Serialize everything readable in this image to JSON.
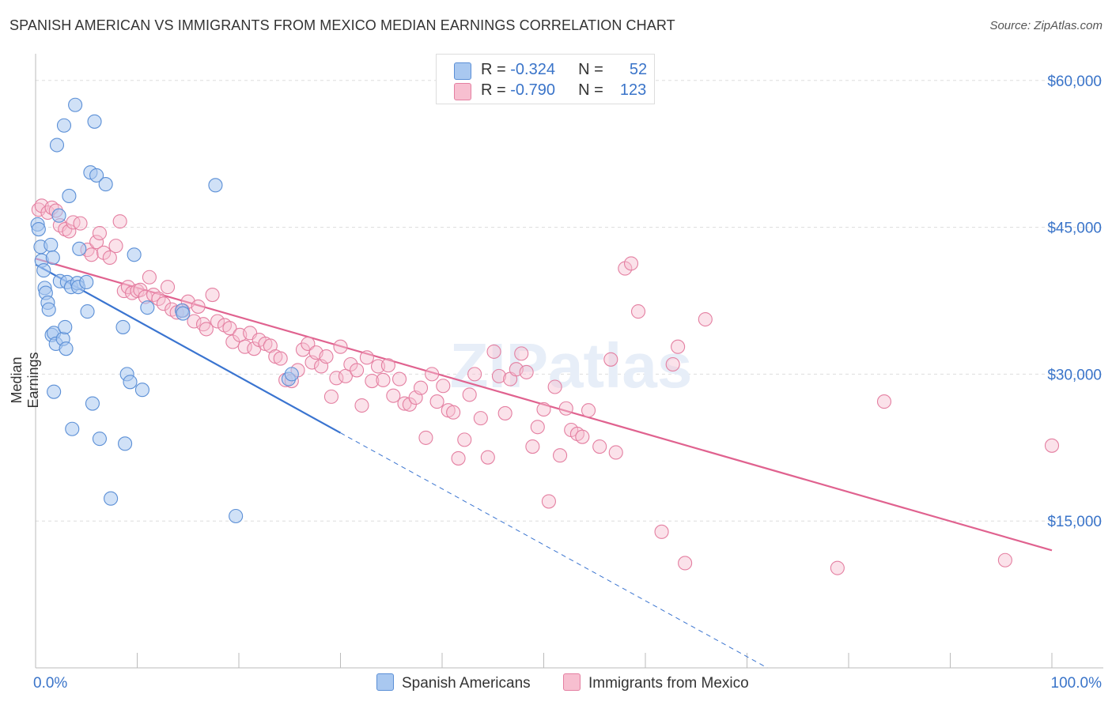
{
  "title": "SPANISH AMERICAN VS IMMIGRANTS FROM MEXICO MEDIAN EARNINGS CORRELATION CHART",
  "source": "Source: ZipAtlas.com",
  "watermark": "ZIPatlas",
  "legend": {
    "rows": [
      {
        "r_label": "R =",
        "r_value": "-0.324",
        "n_label": "N =",
        "n_value": "52"
      },
      {
        "r_label": "R =",
        "r_value": "-0.790",
        "n_label": "N =",
        "n_value": "123"
      }
    ]
  },
  "bottom_legend": {
    "blue": "Spanish Americans",
    "pink": "Immigrants from Mexico"
  },
  "colors": {
    "blue_fill": "#a9c8f0",
    "blue_stroke": "#5b8fd6",
    "blue_line": "#3a74d0",
    "pink_fill": "#f7bfd0",
    "pink_stroke": "#e47fa1",
    "pink_line": "#e0628f",
    "tick_text": "#3a74c9",
    "grid": "#dddddd"
  },
  "chart_data": {
    "type": "scatter",
    "title": "SPANISH AMERICAN VS IMMIGRANTS FROM MEXICO MEDIAN EARNINGS CORRELATION CHART",
    "xlabel": "",
    "ylabel": "Median Earnings",
    "xlim": [
      0,
      100
    ],
    "ylim": [
      0,
      62000
    ],
    "x_tick_labels": [
      "0.0%",
      "100.0%"
    ],
    "y_ticks": [
      15000,
      30000,
      45000,
      60000
    ],
    "y_tick_labels": [
      "$15,000",
      "$30,000",
      "$45,000",
      "$60,000"
    ],
    "series": [
      {
        "name": "Spanish Americans",
        "color": "blue",
        "trend": {
          "x0": 0,
          "y0": 41200,
          "x1": 30,
          "y1": 24000,
          "dash_to_x": 72,
          "dash_to_y": 0
        },
        "points": [
          [
            0.2,
            45300
          ],
          [
            0.3,
            44800
          ],
          [
            0.5,
            43000
          ],
          [
            0.6,
            41600
          ],
          [
            0.8,
            40600
          ],
          [
            0.9,
            38800
          ],
          [
            1.0,
            38300
          ],
          [
            1.2,
            37300
          ],
          [
            1.3,
            36600
          ],
          [
            1.5,
            43200
          ],
          [
            1.7,
            41900
          ],
          [
            1.6,
            34000
          ],
          [
            1.8,
            34200
          ],
          [
            1.8,
            28200
          ],
          [
            2.0,
            33100
          ],
          [
            2.1,
            53400
          ],
          [
            2.3,
            46200
          ],
          [
            2.4,
            39500
          ],
          [
            2.7,
            33600
          ],
          [
            2.8,
            55400
          ],
          [
            2.9,
            34800
          ],
          [
            3.0,
            32600
          ],
          [
            3.1,
            39400
          ],
          [
            3.3,
            48200
          ],
          [
            3.5,
            38900
          ],
          [
            3.6,
            24400
          ],
          [
            3.9,
            57500
          ],
          [
            4.1,
            39300
          ],
          [
            4.2,
            38900
          ],
          [
            4.3,
            42800
          ],
          [
            5.0,
            39400
          ],
          [
            5.1,
            36400
          ],
          [
            5.4,
            50600
          ],
          [
            5.6,
            27000
          ],
          [
            5.8,
            55800
          ],
          [
            6.0,
            50300
          ],
          [
            6.3,
            23400
          ],
          [
            6.9,
            49400
          ],
          [
            7.4,
            17300
          ],
          [
            8.6,
            34800
          ],
          [
            8.8,
            22900
          ],
          [
            9.0,
            30000
          ],
          [
            9.3,
            29200
          ],
          [
            9.7,
            42200
          ],
          [
            10.5,
            28400
          ],
          [
            11.0,
            36800
          ],
          [
            14.4,
            36500
          ],
          [
            14.5,
            36200
          ],
          [
            17.7,
            49300
          ],
          [
            19.7,
            15500
          ],
          [
            24.9,
            29500
          ],
          [
            25.2,
            30000
          ]
        ]
      },
      {
        "name": "Immigrants from Mexico",
        "color": "pink",
        "trend": {
          "x0": 0,
          "y0": 41800,
          "x1": 100,
          "y1": 12000
        },
        "points": [
          [
            0.3,
            46800
          ],
          [
            0.6,
            47200
          ],
          [
            1.2,
            46500
          ],
          [
            1.6,
            47000
          ],
          [
            2.0,
            46700
          ],
          [
            2.4,
            45200
          ],
          [
            2.9,
            44800
          ],
          [
            3.3,
            44600
          ],
          [
            3.7,
            45500
          ],
          [
            4.4,
            45400
          ],
          [
            5.1,
            42700
          ],
          [
            5.5,
            42200
          ],
          [
            6.0,
            43500
          ],
          [
            6.3,
            44400
          ],
          [
            6.7,
            42400
          ],
          [
            7.3,
            41900
          ],
          [
            7.9,
            43100
          ],
          [
            8.3,
            45600
          ],
          [
            8.7,
            38500
          ],
          [
            9.1,
            38900
          ],
          [
            9.5,
            38300
          ],
          [
            10.0,
            38500
          ],
          [
            10.3,
            38600
          ],
          [
            10.8,
            37900
          ],
          [
            11.2,
            39900
          ],
          [
            11.6,
            38100
          ],
          [
            12.1,
            37700
          ],
          [
            12.6,
            37200
          ],
          [
            13.0,
            38900
          ],
          [
            13.4,
            36600
          ],
          [
            13.9,
            36300
          ],
          [
            14.5,
            36500
          ],
          [
            15.0,
            37400
          ],
          [
            15.6,
            35400
          ],
          [
            16.0,
            36900
          ],
          [
            16.5,
            35100
          ],
          [
            16.8,
            34600
          ],
          [
            17.4,
            38100
          ],
          [
            17.9,
            35400
          ],
          [
            18.6,
            35000
          ],
          [
            19.1,
            34700
          ],
          [
            19.4,
            33300
          ],
          [
            20.1,
            34000
          ],
          [
            20.6,
            32800
          ],
          [
            21.1,
            34200
          ],
          [
            21.5,
            32600
          ],
          [
            22.0,
            33500
          ],
          [
            22.6,
            33100
          ],
          [
            23.1,
            32900
          ],
          [
            23.6,
            31800
          ],
          [
            24.1,
            31600
          ],
          [
            24.6,
            29400
          ],
          [
            25.2,
            29300
          ],
          [
            25.8,
            30400
          ],
          [
            26.3,
            32500
          ],
          [
            26.8,
            33100
          ],
          [
            27.2,
            31200
          ],
          [
            27.6,
            32200
          ],
          [
            28.1,
            30800
          ],
          [
            28.6,
            31800
          ],
          [
            29.1,
            27700
          ],
          [
            29.6,
            29600
          ],
          [
            30.0,
            32800
          ],
          [
            30.5,
            29800
          ],
          [
            31.0,
            31000
          ],
          [
            31.6,
            30400
          ],
          [
            32.1,
            26800
          ],
          [
            32.6,
            31700
          ],
          [
            33.1,
            29300
          ],
          [
            33.7,
            30800
          ],
          [
            34.2,
            29400
          ],
          [
            34.7,
            30900
          ],
          [
            35.2,
            27800
          ],
          [
            35.8,
            29500
          ],
          [
            36.3,
            27000
          ],
          [
            36.8,
            26900
          ],
          [
            37.4,
            27600
          ],
          [
            37.9,
            28600
          ],
          [
            38.4,
            23500
          ],
          [
            39.0,
            30000
          ],
          [
            39.5,
            27200
          ],
          [
            40.1,
            28800
          ],
          [
            40.6,
            26300
          ],
          [
            41.1,
            26100
          ],
          [
            41.6,
            21400
          ],
          [
            42.2,
            23300
          ],
          [
            42.7,
            27900
          ],
          [
            43.2,
            30000
          ],
          [
            43.8,
            25500
          ],
          [
            44.5,
            21500
          ],
          [
            45.1,
            32300
          ],
          [
            45.6,
            29800
          ],
          [
            46.2,
            26000
          ],
          [
            46.7,
            29500
          ],
          [
            47.3,
            30500
          ],
          [
            47.8,
            32100
          ],
          [
            48.3,
            30200
          ],
          [
            48.9,
            22600
          ],
          [
            49.4,
            24600
          ],
          [
            50.0,
            26400
          ],
          [
            50.5,
            17000
          ],
          [
            51.1,
            28700
          ],
          [
            51.6,
            21700
          ],
          [
            52.2,
            26500
          ],
          [
            52.7,
            24300
          ],
          [
            53.3,
            23900
          ],
          [
            53.8,
            23600
          ],
          [
            54.4,
            26300
          ],
          [
            55.5,
            22600
          ],
          [
            56.6,
            31500
          ],
          [
            57.1,
            22000
          ],
          [
            58.0,
            40800
          ],
          [
            58.6,
            41300
          ],
          [
            59.3,
            36400
          ],
          [
            61.6,
            13900
          ],
          [
            62.7,
            31000
          ],
          [
            63.2,
            32800
          ],
          [
            63.9,
            10700
          ],
          [
            65.9,
            35600
          ],
          [
            78.9,
            10200
          ],
          [
            83.5,
            27200
          ],
          [
            95.4,
            11000
          ],
          [
            100.0,
            22700
          ]
        ]
      }
    ]
  }
}
